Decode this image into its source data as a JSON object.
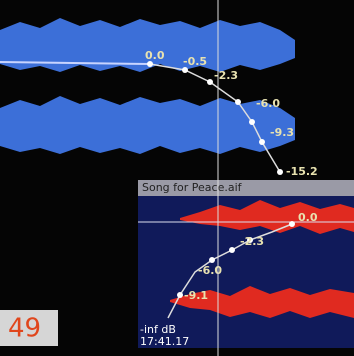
{
  "upper_track": {
    "gain_labels": [
      "0.0",
      "-0.5",
      "-2.3",
      "-6.0",
      "-9.3",
      "-15.2"
    ]
  },
  "lower_track": {
    "title": "Song for Peace.aif",
    "gain_labels": [
      "0.0",
      "-2.3",
      "-6.0",
      "-9.1",
      "-inf dB"
    ],
    "timecode": "17:41.17"
  },
  "badge": "49"
}
